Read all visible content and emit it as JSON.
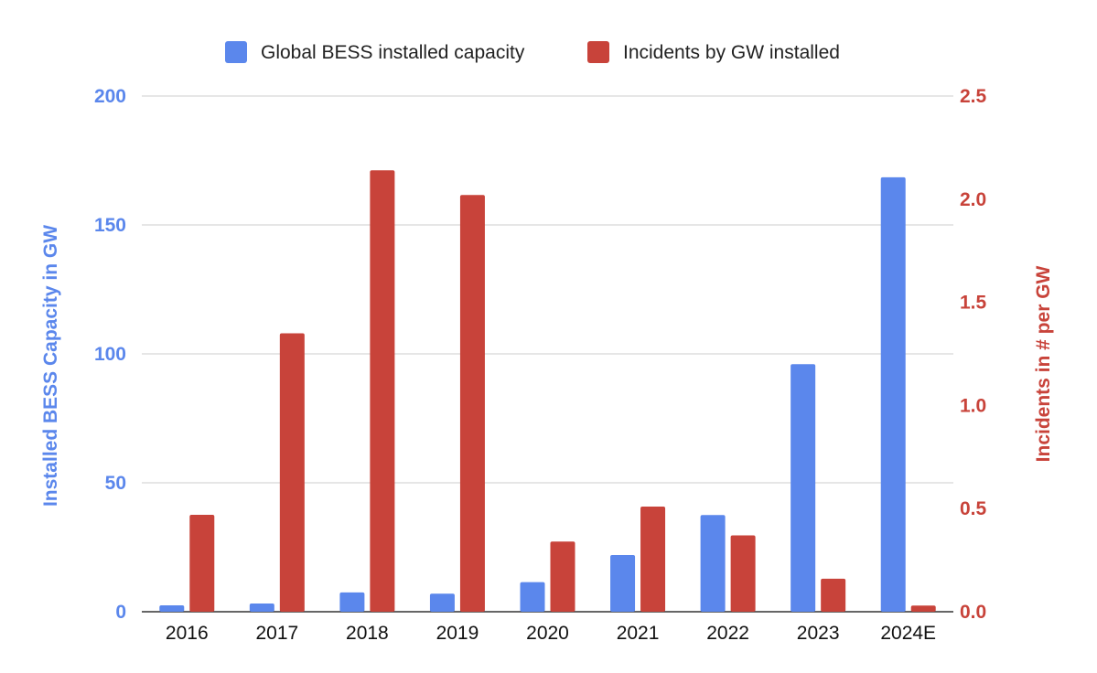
{
  "chart_data": {
    "type": "bar",
    "categories": [
      "2016",
      "2017",
      "2018",
      "2019",
      "2020",
      "2021",
      "2022",
      "2023",
      "2024E"
    ],
    "series": [
      {
        "name": "Global BESS installed capacity",
        "axis": "left",
        "color": "#5b87ec",
        "values": [
          2.5,
          3.2,
          7.5,
          7,
          11.5,
          22,
          37.5,
          96,
          168.5
        ]
      },
      {
        "name": "Incidents by GW installed",
        "axis": "right",
        "color": "#c8433a",
        "values": [
          0.47,
          1.35,
          2.14,
          2.02,
          0.34,
          0.51,
          0.37,
          0.16,
          0.03
        ]
      }
    ],
    "xlabel": "",
    "ylabel_left": "Installed BESS Capacity in GW",
    "ylabel_right": "Incidents in # per GW",
    "ylim_left": [
      0,
      200
    ],
    "ylim_right": [
      0,
      2.5
    ],
    "yticks_left": [
      "0",
      "50",
      "100",
      "150",
      "200"
    ],
    "yticks_right": [
      "0.0",
      "0.5",
      "1.0",
      "1.5",
      "2.0",
      "2.5"
    ],
    "left_axis_color": "#5b87ec",
    "right_axis_color": "#c8433a",
    "grid": true,
    "legend_position": "top-center"
  }
}
